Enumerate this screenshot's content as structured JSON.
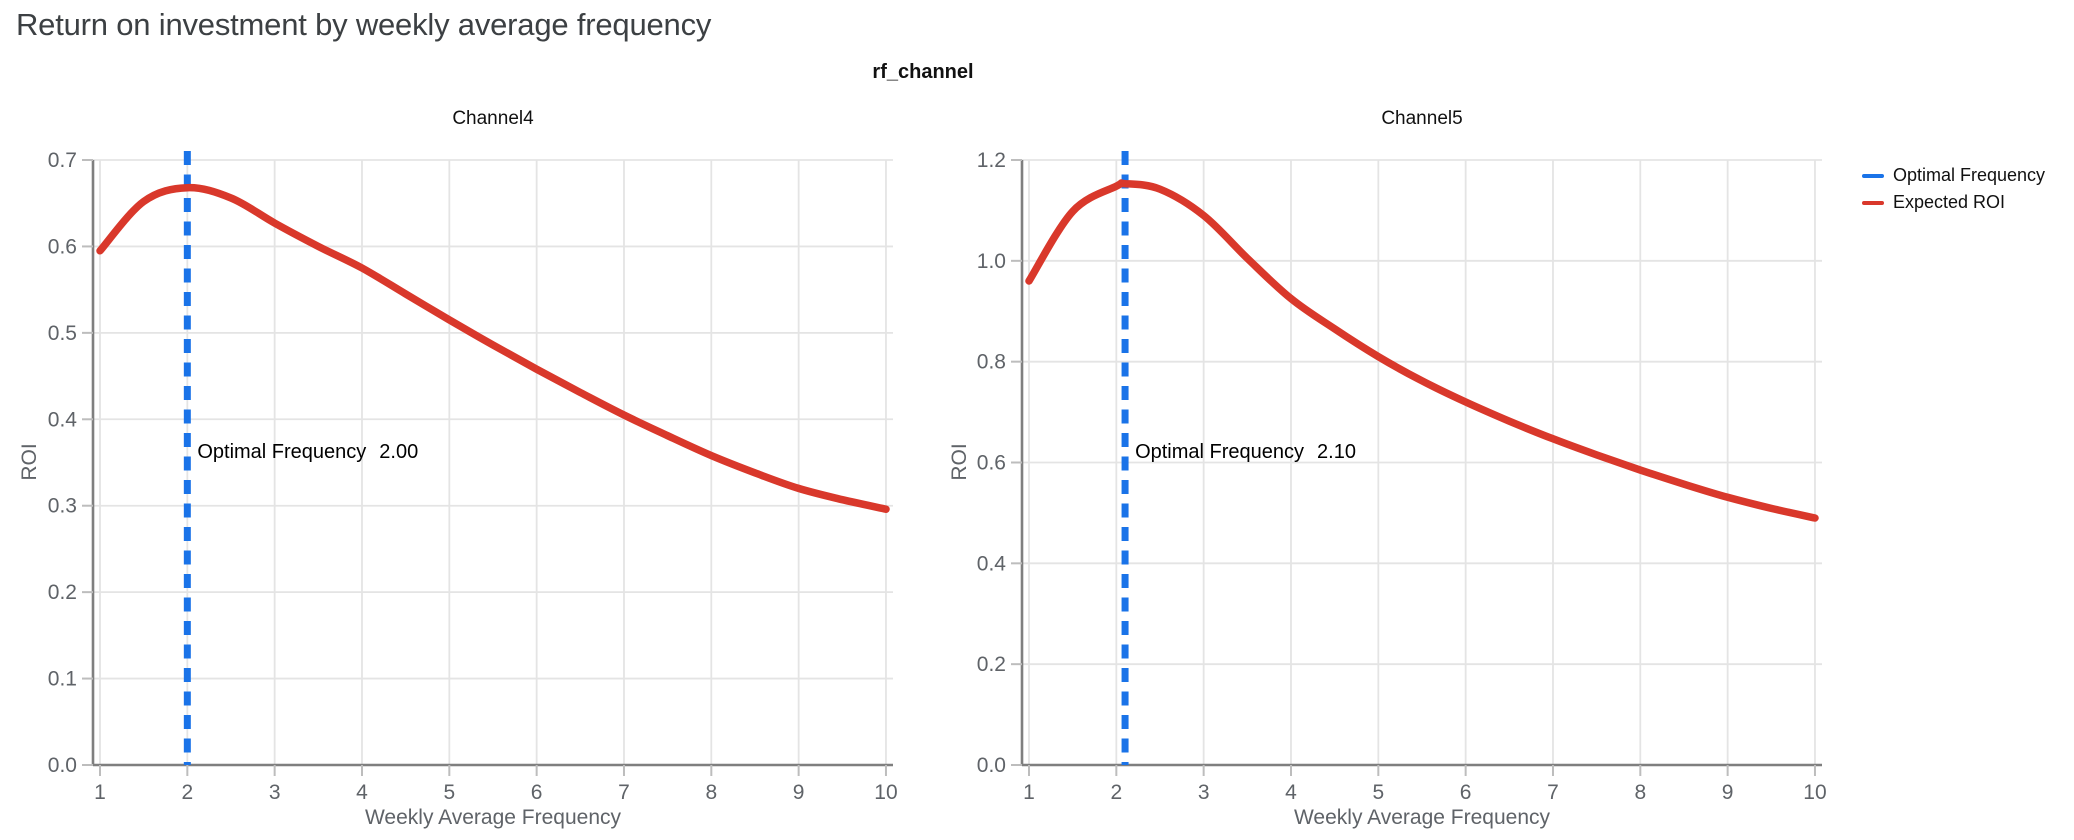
{
  "page": {
    "title": "Return on investment by weekly average frequency"
  },
  "facet_header": "rf_channel",
  "legend": {
    "items": [
      {
        "label": "Optimal Frequency",
        "color": "#1a73e8"
      },
      {
        "label": "Expected ROI",
        "color": "#d9382b"
      }
    ]
  },
  "chart_data": [
    {
      "type": "line",
      "title": "Channel4",
      "xlabel": "Weekly Average Frequency",
      "ylabel": "ROI",
      "xlim": [
        1,
        10
      ],
      "ylim": [
        0,
        0.7
      ],
      "xticks": [
        1,
        2,
        3,
        4,
        5,
        6,
        7,
        8,
        9,
        10
      ],
      "yticks": [
        [
          0,
          "0.0"
        ],
        [
          0.1,
          "0.1"
        ],
        [
          0.2,
          "0.2"
        ],
        [
          0.3,
          "0.3"
        ],
        [
          0.4,
          "0.4"
        ],
        [
          0.5,
          "0.5"
        ],
        [
          0.6,
          "0.6"
        ],
        [
          0.7,
          "0.7"
        ]
      ],
      "grid": true,
      "optimal_frequency": 2.0,
      "annotation": {
        "label": "Optimal Frequency",
        "value": "2.00"
      },
      "series": [
        {
          "name": "Expected ROI",
          "color": "#d9382b",
          "points": [
            [
              1,
              0.595
            ],
            [
              1.5,
              0.652
            ],
            [
              2,
              0.668
            ],
            [
              2.5,
              0.656
            ],
            [
              3,
              0.627
            ],
            [
              3.5,
              0.6
            ],
            [
              4,
              0.575
            ],
            [
              4.5,
              0.545
            ],
            [
              5,
              0.515
            ],
            [
              5.5,
              0.486
            ],
            [
              6,
              0.458
            ],
            [
              6.5,
              0.431
            ],
            [
              7,
              0.405
            ],
            [
              7.5,
              0.381
            ],
            [
              8,
              0.358
            ],
            [
              8.5,
              0.338
            ],
            [
              9,
              0.32
            ],
            [
              9.5,
              0.307
            ],
            [
              10,
              0.296
            ]
          ]
        }
      ]
    },
    {
      "type": "line",
      "title": "Channel5",
      "xlabel": "Weekly Average Frequency",
      "ylabel": "ROI",
      "xlim": [
        1,
        10
      ],
      "ylim": [
        0,
        1.2
      ],
      "xticks": [
        1,
        2,
        3,
        4,
        5,
        6,
        7,
        8,
        9,
        10
      ],
      "yticks": [
        [
          0,
          "0.0"
        ],
        [
          0.2,
          "0.2"
        ],
        [
          0.4,
          "0.4"
        ],
        [
          0.6,
          "0.6"
        ],
        [
          0.8,
          "0.8"
        ],
        [
          1.0,
          "1.0"
        ],
        [
          1.2,
          "1.2"
        ]
      ],
      "grid": true,
      "optimal_frequency": 2.1,
      "annotation": {
        "label": "Optimal Frequency",
        "value": "2.10"
      },
      "series": [
        {
          "name": "Expected ROI",
          "color": "#d9382b",
          "points": [
            [
              1,
              0.96
            ],
            [
              1.5,
              1.098
            ],
            [
              2,
              1.148
            ],
            [
              2.1,
              1.153
            ],
            [
              2.5,
              1.142
            ],
            [
              3,
              1.09
            ],
            [
              3.5,
              1.005
            ],
            [
              4,
              0.925
            ],
            [
              4.5,
              0.865
            ],
            [
              5,
              0.81
            ],
            [
              5.5,
              0.762
            ],
            [
              6,
              0.72
            ],
            [
              6.5,
              0.682
            ],
            [
              7,
              0.647
            ],
            [
              7.5,
              0.615
            ],
            [
              8,
              0.585
            ],
            [
              8.5,
              0.557
            ],
            [
              9,
              0.531
            ],
            [
              9.5,
              0.509
            ],
            [
              10,
              0.49
            ]
          ]
        }
      ]
    }
  ],
  "style": {
    "optimal_line_color": "#1a73e8",
    "roi_curve_color": "#d9382b",
    "grid_color": "#e4e4e4",
    "axis_color": "#7f7f7f",
    "tick_color": "#bdbdbd",
    "tick_label_color": "#5f6368"
  }
}
